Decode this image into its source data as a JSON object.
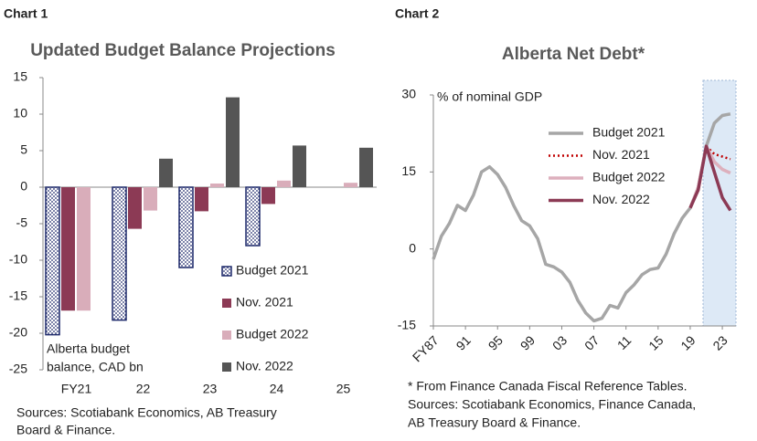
{
  "chart_data": [
    {
      "type": "bar",
      "header": "Chart 1",
      "title": "Updated Budget Balance Projections",
      "categories": [
        "FY21",
        "22",
        "23",
        "24",
        "25"
      ],
      "series": [
        {
          "name": "Budget 2021",
          "color": "#1f2a6b",
          "pattern": "dots",
          "values": [
            -20.2,
            -18.2,
            -11.0,
            -8.0,
            null
          ]
        },
        {
          "name": "Nov. 2021",
          "color": "#8c3a55",
          "values": [
            -16.9,
            -5.7,
            -3.3,
            -2.3,
            null
          ]
        },
        {
          "name": "Budget 2022",
          "color": "#d9adba",
          "values": [
            -16.9,
            -3.2,
            0.5,
            0.9,
            0.6
          ]
        },
        {
          "name": "Nov. 2022",
          "color": "#555555",
          "values": [
            null,
            3.9,
            12.3,
            5.7,
            5.4
          ]
        }
      ],
      "ylim": [
        -25,
        15
      ],
      "yticks": [
        -25,
        -20,
        -15,
        -10,
        -5,
        0,
        5,
        10,
        15
      ],
      "annotation": [
        "Alberta budget",
        "balance, CAD bn"
      ],
      "legend": "lower right",
      "notes": [
        "Sources: Scotiabank Economics, AB Treasury",
        "Board & Finance."
      ]
    },
    {
      "type": "line",
      "header": "Chart 2",
      "title": "Alberta Net Debt*",
      "ylabel": "% of nominal GDP",
      "x": [
        1987,
        1988,
        1989,
        1990,
        1991,
        1992,
        1993,
        1994,
        1995,
        1996,
        1997,
        1998,
        1999,
        2000,
        2001,
        2002,
        2003,
        2004,
        2005,
        2006,
        2007,
        2008,
        2009,
        2010,
        2011,
        2012,
        2013,
        2014,
        2015,
        2016,
        2017,
        2018,
        2019,
        2020,
        2021,
        2022,
        2023,
        2024
      ],
      "series": [
        {
          "name": "Budget 2021",
          "color": "#a6a6a6",
          "values": [
            -2,
            2.5,
            5,
            8.5,
            7.5,
            10.5,
            15,
            16,
            14.5,
            12,
            8.5,
            5.5,
            4.5,
            2,
            -3,
            -3.5,
            -4.5,
            -6.5,
            -10,
            -12.5,
            -14,
            -13.5,
            -11,
            -11.5,
            -8.5,
            -7,
            -5,
            -4,
            -3.7,
            -1,
            3,
            6,
            8,
            12,
            20,
            24.5,
            26,
            26.3
          ]
        },
        {
          "name": "Nov. 2021",
          "color": "#c00000",
          "dash": "dotted",
          "values": [
            null,
            null,
            null,
            null,
            null,
            null,
            null,
            null,
            null,
            null,
            null,
            null,
            null,
            null,
            null,
            null,
            null,
            null,
            null,
            null,
            null,
            null,
            null,
            null,
            null,
            null,
            null,
            null,
            null,
            null,
            null,
            null,
            8,
            12,
            20,
            18.5,
            18,
            17.5
          ]
        },
        {
          "name": "Budget 2022",
          "color": "#ddb0bd",
          "values": [
            null,
            null,
            null,
            null,
            null,
            null,
            null,
            null,
            null,
            null,
            null,
            null,
            null,
            null,
            null,
            null,
            null,
            null,
            null,
            null,
            null,
            null,
            null,
            null,
            null,
            null,
            null,
            null,
            null,
            null,
            null,
            null,
            8,
            12,
            20,
            17,
            15.5,
            14.8
          ]
        },
        {
          "name": "Nov. 2022",
          "color": "#8c3a55",
          "values": [
            null,
            null,
            null,
            null,
            null,
            null,
            null,
            null,
            null,
            null,
            null,
            null,
            null,
            null,
            null,
            null,
            null,
            null,
            null,
            null,
            null,
            null,
            null,
            null,
            null,
            null,
            null,
            null,
            null,
            null,
            null,
            null,
            8,
            11.5,
            20,
            15,
            10,
            7.5
          ]
        }
      ],
      "xlim": [
        1987,
        2024.7
      ],
      "xticks": [
        {
          "value": 1987,
          "label": "FY87"
        },
        {
          "value": 1991,
          "label": "91"
        },
        {
          "value": 1995,
          "label": "95"
        },
        {
          "value": 1999,
          "label": "99"
        },
        {
          "value": 2003,
          "label": "03"
        },
        {
          "value": 2007,
          "label": "07"
        },
        {
          "value": 2011,
          "label": "11"
        },
        {
          "value": 2015,
          "label": "15"
        },
        {
          "value": 2019,
          "label": "19"
        },
        {
          "value": 2023,
          "label": "23"
        }
      ],
      "ylim": [
        -15,
        30
      ],
      "yticks": [
        -15,
        0,
        15,
        30
      ],
      "shaded_x": [
        2020.6,
        2024.7
      ],
      "legend": "upper right",
      "notes": [
        "* From Finance Canada Fiscal Reference Tables.",
        "Sources: Scotiabank Economics, Finance Canada,",
        "AB Treasury Board & Finance."
      ]
    }
  ]
}
